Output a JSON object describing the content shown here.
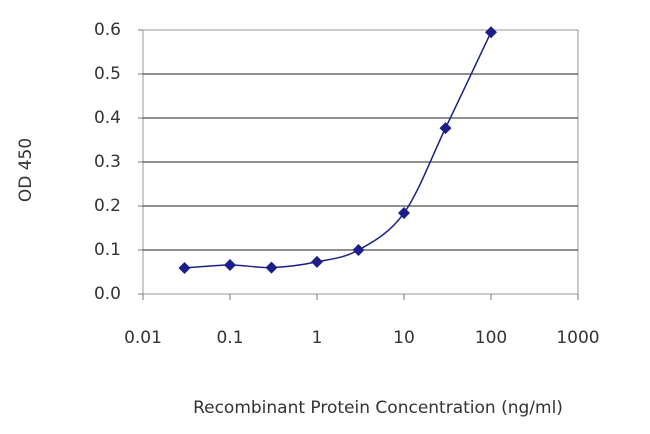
{
  "chart_data": {
    "type": "line",
    "x_label": "Recombinant Protein Concentration (ng/ml)",
    "y_label": "OD 450",
    "x_scale": "log",
    "color": "#1c1f8a",
    "grid": true,
    "x": [
      0.03,
      0.1,
      0.3,
      1,
      3,
      10,
      30,
      100
    ],
    "values": [
      0.059,
      0.066,
      0.06,
      0.073,
      0.1,
      0.184,
      0.377,
      0.595
    ],
    "xlim": [
      0.01,
      1000
    ],
    "xticks": [
      0.01,
      0.1,
      1,
      10,
      100,
      1000
    ],
    "ylim": [
      0,
      0.6
    ],
    "yticks": [
      {
        "value": 0,
        "label": "0.0"
      },
      0.1,
      0.2,
      0.3,
      0.4,
      0.5,
      0.6
    ]
  }
}
